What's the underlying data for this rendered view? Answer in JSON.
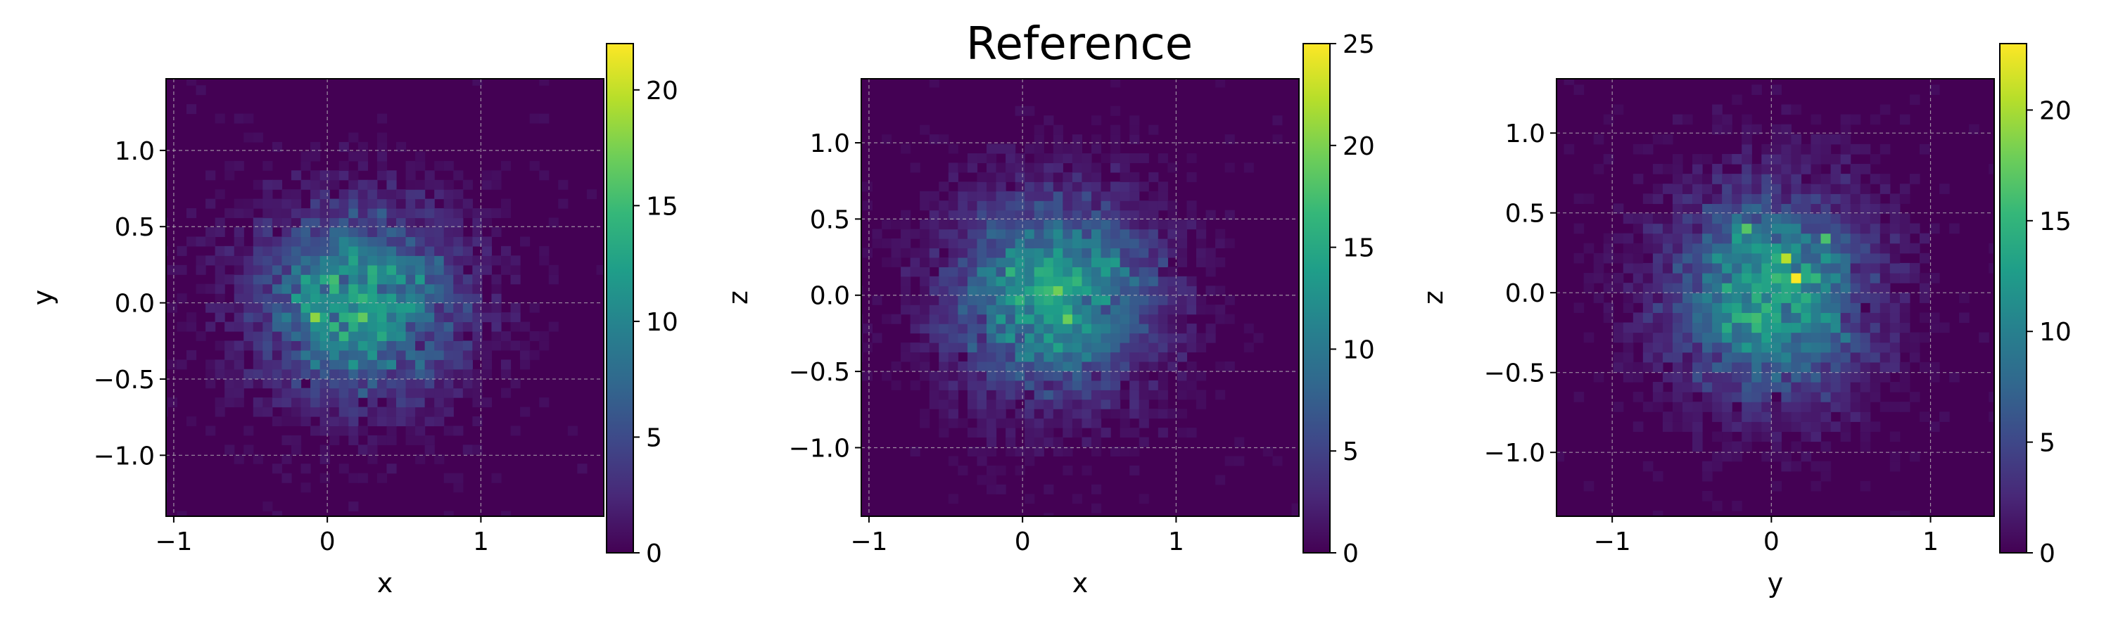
{
  "figure": {
    "title": "Reference",
    "colormap": "viridis",
    "colors": {
      "low": "#440154",
      "mid": "#21918c",
      "high": "#fde725",
      "grid": "#bdbdbd",
      "frame": "#000000"
    }
  },
  "chart_data": [
    {
      "type": "heatmap",
      "title": "",
      "xlabel": "x",
      "ylabel": "y",
      "xlim": [
        -1.05,
        1.8
      ],
      "ylim": [
        -1.4,
        1.47
      ],
      "xticks": [
        -1,
        0,
        1
      ],
      "xtick_labels": [
        "−1",
        "0",
        "1"
      ],
      "yticks": [
        -1.0,
        -0.5,
        0.0,
        0.5,
        1.0
      ],
      "ytick_labels": [
        "−1.0",
        "−0.5",
        "0.0",
        "0.5",
        "1.0"
      ],
      "grid": true,
      "distribution": {
        "kind": "2d-gaussian-histogram",
        "center": [
          0.2,
          0.0
        ],
        "spread": [
          0.42,
          0.38
        ],
        "bins": [
          58,
          58
        ]
      },
      "colorbar": {
        "range": [
          0,
          22
        ],
        "ticks": [
          0,
          5,
          10,
          15,
          20
        ],
        "tick_labels": [
          "0",
          "5",
          "10",
          "15",
          "20"
        ]
      }
    },
    {
      "type": "heatmap",
      "title": "Reference",
      "xlabel": "x",
      "ylabel": "z",
      "xlim": [
        -1.05,
        1.8
      ],
      "ylim": [
        -1.45,
        1.42
      ],
      "xticks": [
        -1,
        0,
        1
      ],
      "xtick_labels": [
        "−1",
        "0",
        "1"
      ],
      "yticks": [
        -1.0,
        -0.5,
        0.0,
        0.5,
        1.0
      ],
      "ytick_labels": [
        "−1.0",
        "−0.5",
        "0.0",
        "0.5",
        "1.0"
      ],
      "grid": true,
      "distribution": {
        "kind": "2d-gaussian-histogram",
        "center": [
          0.2,
          0.0
        ],
        "spread": [
          0.42,
          0.4
        ],
        "bins": [
          58,
          58
        ]
      },
      "colorbar": {
        "range": [
          0,
          25
        ],
        "ticks": [
          0,
          5,
          10,
          15,
          20,
          25
        ],
        "tick_labels": [
          "0",
          "5",
          "10",
          "15",
          "20",
          "25"
        ]
      }
    },
    {
      "type": "heatmap",
      "title": "",
      "xlabel": "y",
      "ylabel": "z",
      "xlim": [
        -1.35,
        1.4
      ],
      "ylim": [
        -1.4,
        1.34
      ],
      "xticks": [
        -1,
        0,
        1
      ],
      "xtick_labels": [
        "−1",
        "0",
        "1"
      ],
      "yticks": [
        -1.0,
        -0.5,
        0.0,
        0.5,
        1.0
      ],
      "ytick_labels": [
        "−1.0",
        "−0.5",
        "0.0",
        "0.5",
        "1.0"
      ],
      "grid": true,
      "distribution": {
        "kind": "2d-gaussian-histogram",
        "center": [
          0.0,
          0.0
        ],
        "spread": [
          0.4,
          0.4
        ],
        "bins": [
          58,
          58
        ]
      },
      "colorbar": {
        "range": [
          0,
          23
        ],
        "ticks": [
          0,
          5,
          10,
          15,
          20
        ],
        "tick_labels": [
          "0",
          "5",
          "10",
          "15",
          "20"
        ]
      }
    }
  ]
}
